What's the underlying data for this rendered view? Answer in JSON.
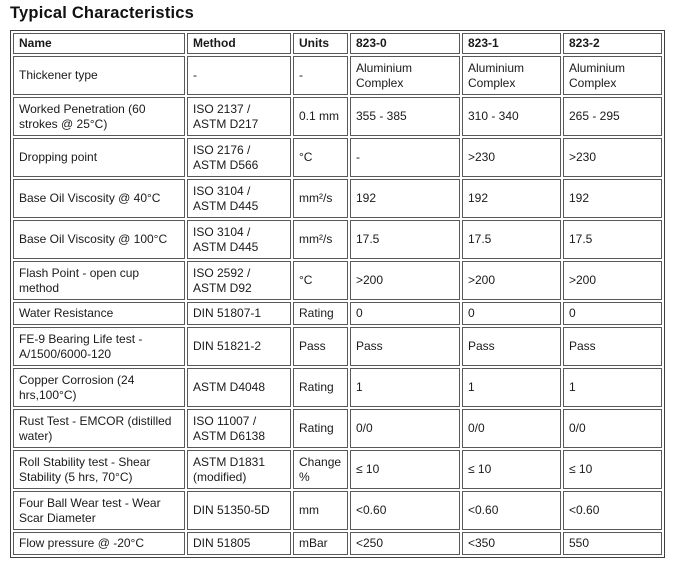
{
  "page": {
    "title": "Typical Characteristics"
  },
  "colors": {
    "background": "#ffffff",
    "text": "#1a1a1a",
    "table_border": "#595959",
    "outer_border": "#3f3f3f"
  },
  "table": {
    "columns": {
      "name": "Name",
      "method": "Method",
      "units": "Units",
      "v0": "823-0",
      "v1": "823-1",
      "v2": "823-2"
    },
    "rows": [
      {
        "name": "Thickener type",
        "method": "-",
        "units": "-",
        "v0": "Aluminium Complex",
        "v1": "Aluminium Complex",
        "v2": "Aluminium Complex"
      },
      {
        "name": "Worked Penetration (60 strokes @ 25°C)",
        "method": "ISO 2137 / ASTM D217",
        "units": "0.1 mm",
        "v0": "355 - 385",
        "v1": "310 - 340",
        "v2": "265 - 295"
      },
      {
        "name": "Dropping point",
        "method": "ISO 2176 / ASTM D566",
        "units": "°C",
        "v0": "-",
        "v1": ">230",
        "v2": ">230"
      },
      {
        "name": "Base Oil Viscosity @ 40°C",
        "method": "ISO 3104 / ASTM D445",
        "units": "mm²/s",
        "v0": "192",
        "v1": "192",
        "v2": "192"
      },
      {
        "name": "Base Oil Viscosity @ 100°C",
        "method": "ISO 3104 / ASTM D445",
        "units": "mm²/s",
        "v0": "17.5",
        "v1": "17.5",
        "v2": "17.5"
      },
      {
        "name": "Flash Point - open cup method",
        "method": "ISO 2592 / ASTM D92",
        "units": "°C",
        "v0": ">200",
        "v1": ">200",
        "v2": ">200"
      },
      {
        "name": "Water Resistance",
        "method": "DIN 51807-1",
        "units": "Rating",
        "v0": "0",
        "v1": "0",
        "v2": "0"
      },
      {
        "name": "FE-9 Bearing Life test - A/1500/6000-120",
        "method": "DIN 51821-2",
        "units": "Pass",
        "v0": "Pass",
        "v1": "Pass",
        "v2": "Pass"
      },
      {
        "name": "Copper Corrosion (24 hrs,100°C)",
        "method": "ASTM D4048",
        "units": "Rating",
        "v0": "1",
        "v1": "1",
        "v2": "1"
      },
      {
        "name": "Rust Test - EMCOR (distilled water)",
        "method": "ISO 11007 / ASTM D6138",
        "units": "Rating",
        "v0": "0/0",
        "v1": "0/0",
        "v2": "0/0"
      },
      {
        "name": "Roll Stability test - Shear Stability (5 hrs, 70°C)",
        "method": "ASTM D1831 (modified)",
        "units": "Change %",
        "v0": "≤ 10",
        "v1": "≤ 10",
        "v2": "≤ 10"
      },
      {
        "name": "Four Ball Wear test - Wear Scar Diameter",
        "method": "DIN 51350-5D",
        "units": "mm",
        "v0": "<0.60",
        "v1": "<0.60",
        "v2": "<0.60"
      },
      {
        "name": "Flow pressure @ -20°C",
        "method": "DIN 51805",
        "units": "mBar",
        "v0": "<250",
        "v1": "<350",
        "v2": "550"
      }
    ]
  }
}
